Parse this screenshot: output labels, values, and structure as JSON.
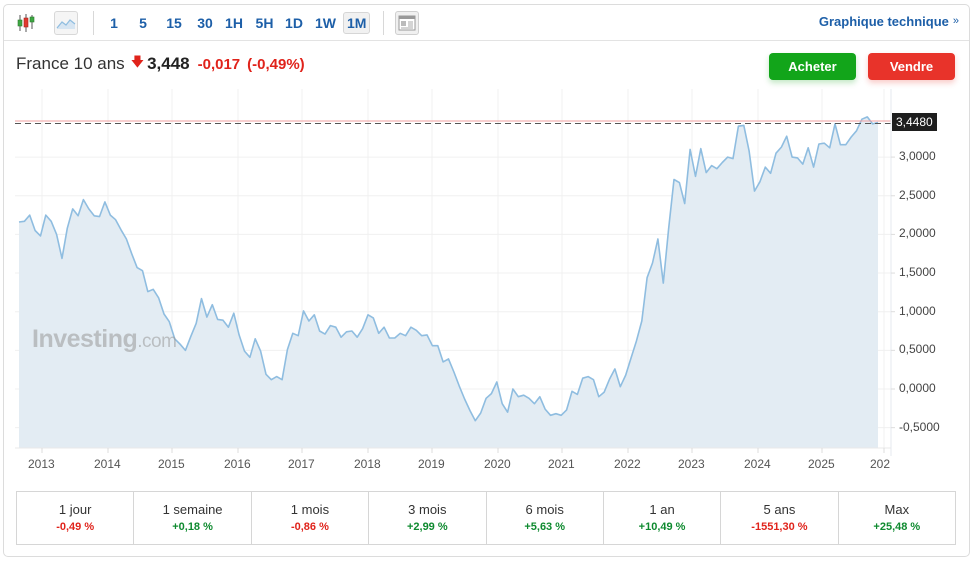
{
  "toolbar": {
    "chart_type_icons": [
      "candlestick-icon",
      "area-chart-icon"
    ],
    "periods": [
      "1",
      "5",
      "15",
      "30",
      "1H",
      "5H",
      "1D",
      "1W",
      "1M"
    ],
    "active_period": "1M",
    "layout_icon": "layout-icon",
    "tech_link": "Graphique technique",
    "tech_link_icon": "»"
  },
  "quote": {
    "name": "France 10 ans",
    "direction_icon": "arrow-down",
    "last": "3,448",
    "change": "-0,017",
    "change_pct": "(-0,49%)"
  },
  "actions": {
    "buy": "Acheter",
    "sell": "Vendre"
  },
  "colors": {
    "accent_blue": "#1d5fa8",
    "buy_green": "#12a51a",
    "sell_red": "#e8332a",
    "negative": "#e0231b",
    "positive": "#0e8a2f",
    "line": "#8fbde0",
    "area_fill": "#e3ecf3"
  },
  "watermark": {
    "brand": "Investing",
    "suffix": ".com"
  },
  "chart_data": {
    "type": "area",
    "title": "France 10 ans",
    "xlabel": "",
    "ylabel": "",
    "x_ticks": [
      "2013",
      "2014",
      "2015",
      "2016",
      "2017",
      "2018",
      "2019",
      "2020",
      "2021",
      "2022",
      "2023",
      "2024",
      "2025",
      "202"
    ],
    "y_ticks": [
      "3,0000",
      "2,5000",
      "2,0000",
      "1,5000",
      "1,0000",
      "0,5000",
      "0,0000",
      "-0,5000"
    ],
    "ylim": [
      -0.78,
      3.85
    ],
    "grid": true,
    "legend": "none",
    "last_price_label": "3,4480",
    "last_price": 3.448,
    "frequency": "monthly",
    "x_start": "2012-08",
    "x_end": "2025-09",
    "values": [
      2.16,
      2.17,
      2.25,
      2.05,
      1.98,
      2.25,
      2.17,
      2.0,
      1.69,
      2.08,
      2.33,
      2.24,
      2.45,
      2.33,
      2.24,
      2.23,
      2.42,
      2.25,
      2.19,
      2.06,
      1.94,
      1.75,
      1.57,
      1.53,
      1.26,
      1.29,
      1.18,
      0.97,
      0.87,
      0.65,
      0.58,
      0.5,
      0.68,
      0.85,
      1.17,
      0.93,
      1.09,
      0.9,
      0.89,
      0.8,
      0.98,
      0.7,
      0.49,
      0.41,
      0.65,
      0.49,
      0.19,
      0.12,
      0.16,
      0.12,
      0.51,
      0.72,
      0.69,
      1.01,
      0.88,
      0.96,
      0.75,
      0.71,
      0.82,
      0.8,
      0.67,
      0.74,
      0.75,
      0.67,
      0.78,
      0.96,
      0.92,
      0.72,
      0.8,
      0.66,
      0.66,
      0.72,
      0.69,
      0.8,
      0.76,
      0.69,
      0.7,
      0.56,
      0.56,
      0.35,
      0.39,
      0.22,
      0.04,
      -0.13,
      -0.28,
      -0.41,
      -0.31,
      -0.12,
      -0.06,
      0.09,
      -0.19,
      -0.3,
      0.0,
      -0.1,
      -0.08,
      -0.12,
      -0.19,
      -0.1,
      -0.26,
      -0.34,
      -0.32,
      -0.34,
      -0.27,
      -0.03,
      -0.07,
      0.14,
      0.16,
      0.12,
      -0.1,
      -0.04,
      0.13,
      0.26,
      0.03,
      0.18,
      0.4,
      0.62,
      0.88,
      1.44,
      1.63,
      1.94,
      1.37,
      2.07,
      2.71,
      2.67,
      2.4,
      3.1,
      2.75,
      3.11,
      2.8,
      2.89,
      2.85,
      2.93,
      3.0,
      2.98,
      3.4,
      3.41,
      3.08,
      2.56,
      2.68,
      2.87,
      2.79,
      3.05,
      3.13,
      3.27,
      3.0,
      2.99,
      2.91,
      3.12,
      2.87,
      3.17,
      3.18,
      3.12,
      3.43,
      3.16,
      3.16,
      3.26,
      3.34,
      3.49,
      3.52,
      3.43,
      3.448
    ]
  },
  "performance": [
    {
      "label": "1 jour",
      "value": "-0,49 %",
      "sign": "neg"
    },
    {
      "label": "1 semaine",
      "value": "+0,18 %",
      "sign": "pos"
    },
    {
      "label": "1 mois",
      "value": "-0,86 %",
      "sign": "neg"
    },
    {
      "label": "3 mois",
      "value": "+2,99 %",
      "sign": "pos"
    },
    {
      "label": "6 mois",
      "value": "+5,63 %",
      "sign": "pos"
    },
    {
      "label": "1 an",
      "value": "+10,49 %",
      "sign": "pos"
    },
    {
      "label": "5 ans",
      "value": "-1551,30 %",
      "sign": "neg"
    },
    {
      "label": "Max",
      "value": "+25,48 %",
      "sign": "pos"
    }
  ]
}
